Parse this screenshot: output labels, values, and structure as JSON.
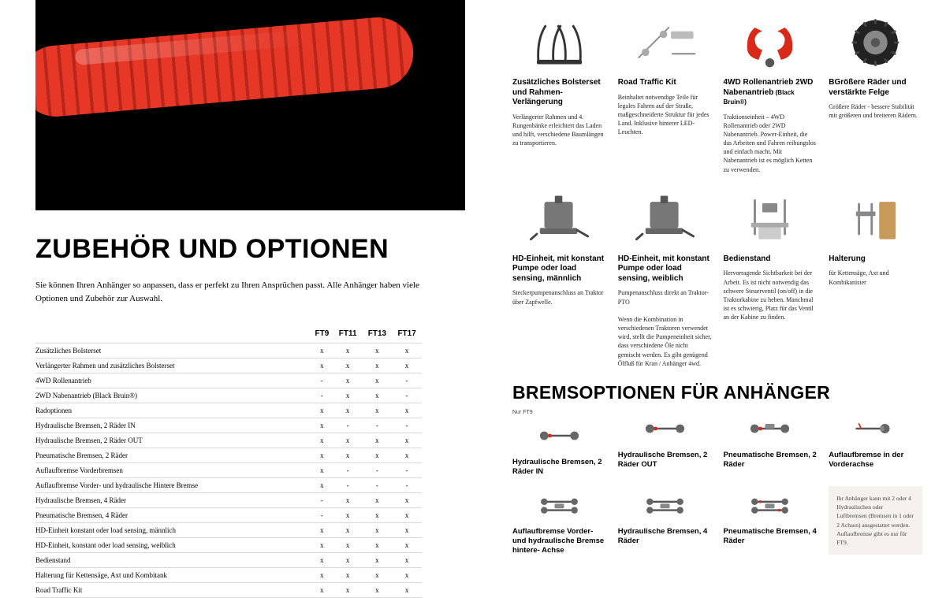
{
  "hero_alt": "red hydraulic hose close-up",
  "title": "ZUBEHÖR UND OPTIONEN",
  "intro": "Sie können Ihren Anhänger so anpassen, dass er perfekt zu Ihren Ansprüchen passt. Alle Anhänger haben viele Optionen und Zubehör zur Auswahl.",
  "table": {
    "head": [
      "",
      "FT9",
      "FT11",
      "FT13",
      "FT17"
    ],
    "rows": [
      [
        "Zusätzliches Bolsterset",
        "x",
        "x",
        "x",
        "x"
      ],
      [
        "Verlängerter Rahmen und zusätzliches Bolsterset",
        "x",
        "x",
        "x",
        "x"
      ],
      [
        "4WD Rollenantrieb",
        "-",
        "x",
        "x",
        "-"
      ],
      [
        "2WD Nabenantrieb (Black Bruin®)",
        "-",
        "x",
        "x",
        "-"
      ],
      [
        "Radoptionen",
        "x",
        "x",
        "x",
        "x"
      ],
      [
        "Hydraulische Bremsen, 2 Räder IN",
        "x",
        "-",
        "-",
        "-"
      ],
      [
        "Hydraulische Bremsen, 2 Räder OUT",
        "x",
        "x",
        "x",
        "x"
      ],
      [
        "Pneumatische Bremsen, 2 Räder",
        "x",
        "x",
        "x",
        "x"
      ],
      [
        "Auflaufbremse Vorderbremsen",
        "x",
        "-",
        "-",
        "-"
      ],
      [
        "Auflaufbremse Vorder- und hydraulische Hintere Bremse",
        "x",
        "-",
        "-",
        "-"
      ],
      [
        "Hydraulische Bremsen, 4 Räder",
        "-",
        "x",
        "x",
        "x"
      ],
      [
        "Pneumatische Bremsen, 4 Räder",
        "-",
        "x",
        "x",
        "x"
      ],
      [
        "HD-Einheit konstant  oder load sensing, männlich",
        "x",
        "x",
        "x",
        "x"
      ],
      [
        "HD-Einheit, konstant oder load sensing, weiblich",
        "x",
        "x",
        "x",
        "x"
      ],
      [
        "Bedienstand",
        "x",
        "x",
        "x",
        "x"
      ],
      [
        "Halterung für Kettensäge, Axt und Kombitank",
        "x",
        "x",
        "x",
        "x"
      ],
      [
        "Road Traffic Kit",
        "x",
        "x",
        "x",
        "x"
      ]
    ]
  },
  "products": [
    {
      "title": "Zusätzliches Bolsterset und Rahmen-Verlängerung",
      "desc": "Verlängerter Rahmen und 4. Rungenbänke erleichtert das Laden und hilft, verschiedene Baumlängen zu transportieren.",
      "svg": "stakes"
    },
    {
      "title": "Road Traffic Kit",
      "desc": "Beinhaltet notwendige Teile für legales Fahren auf der Straße, maßgeschneiderte Struktur für jedes Land. Inklusive hinterer LED-Leuchten.",
      "svg": "roadkit"
    },
    {
      "title": "4WD Rollenantrieb 2WD Nabenantrieb",
      "sub": "(Black Bruin®)",
      "desc": "Traktionseinheit – 4WD Rollenantrieb oder 2WD Nabenantrieb. Power-Einheit, die das Arbeiten und Fahren reibungslos und einfach macht. Mit Nabenantrieb ist es möglich Ketten zu verwenden.",
      "svg": "drive"
    },
    {
      "title": "BGrößere Räder und verstärkte Felge",
      "desc": "Größere Räder - bessere Stabilität mit größeren und breiteren Rädern.",
      "svg": "tire"
    },
    {
      "title": "HD-Einheit, mit konstant Pumpe oder load sensing, männlich",
      "desc": "Steckerpumpenanschluss an Traktor über Zapfwelle.",
      "svg": "hd"
    },
    {
      "title": "HD-Einheit, mit konstant Pumpe oder load sensing, weiblich",
      "desc": "Pumpenanschluss direkt an Traktor-PTO\n\nWenn die Kombination in verschiedenen Traktoren verwendet wird, stellt die Pumpeneinheit sicher, dass verschiedene Öle nicht gemischt werden. Es gibt genügend Ölfluß für Kran / Anhänger 4wd.",
      "svg": "hd"
    },
    {
      "title": "Bedienstand",
      "desc": "Hervorragende Sichtbarkeit bei der Arbeit. Es ist nicht notwendig das schwere Steuerventil (on/off) in die Traktorkabine zu heben. Manchmal ist es schwierig, Platz für das Ventil an der Kabine zu finden.",
      "svg": "stand"
    },
    {
      "title": "Halterung",
      "desc": "für Kettensäge, Axt und Kombikanister",
      "svg": "holder"
    }
  ],
  "brakes_title": "BREMSOPTIONEN FÜR ANHÄNGER",
  "brakes_row1": [
    {
      "title": "Hydraulische Bremsen, 2 Räder IN",
      "note": "Nur FT9",
      "svg": "axle1"
    },
    {
      "title": "Hydraulische Bremsen, 2 Räder OUT",
      "svg": "axle1"
    },
    {
      "title": "Pneumatische Bremsen, 2 Räder",
      "svg": "axle2"
    },
    {
      "title": "Auflaufbremse in der Vorderachse",
      "svg": "front"
    }
  ],
  "brakes_row2": [
    {
      "title": "Auflaufbremse Vorder- und hydraulische Bremse hintere- Achse",
      "svg": "bogie"
    },
    {
      "title": "Hydraulische Bremsen, 4 Räder",
      "svg": "bogie"
    },
    {
      "title": "Pneumatische Bremsen, 4 Räder",
      "svg": "bogie2"
    },
    {
      "note_box": "Ihr Anhänger kann mit 2 oder 4 Hydraulischen oder Luftbremsen (Bremsen in 1 oder 2 Achsen) ausgestattet werden. Auflaufbremse gibt es nur für FT9."
    }
  ]
}
